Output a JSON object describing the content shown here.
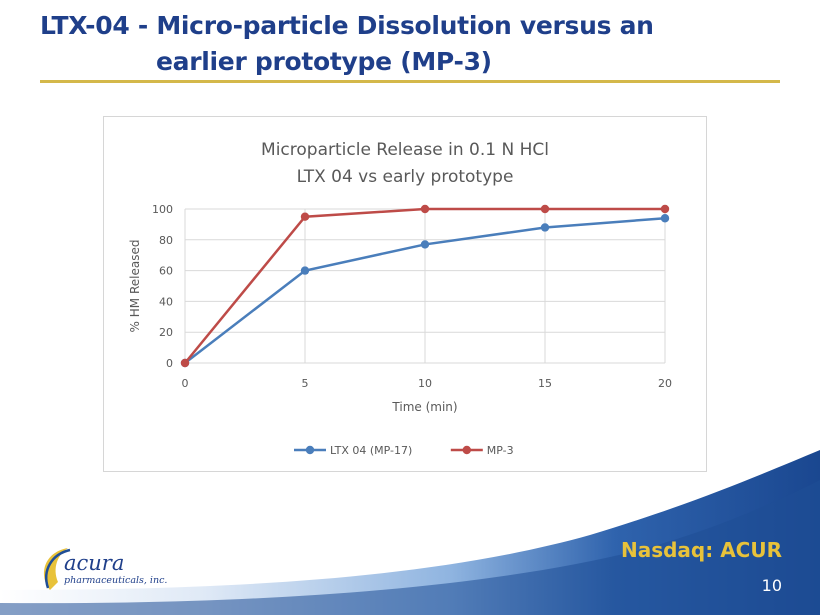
{
  "slide": {
    "title_line1": "LTX-04 - Micro-particle Dissolution versus an",
    "title_line2": "earlier prototype (MP-3)",
    "nasdaq": "Nasdaq: ACUR",
    "page_number": "10",
    "logo_name": "acura",
    "logo_sub": "pharmaceuticals, inc."
  },
  "colors": {
    "title": "#1f3f8a",
    "accent_rule": "#d4b84a",
    "footer_blue": "#1f4e96",
    "nasdaq": "#e8c23a"
  },
  "chart_data": {
    "type": "line",
    "title": "Microparticle Release in 0.1 N HCl",
    "subtitle": "LTX 04 vs early prototype",
    "xlabel": "Time (min)",
    "ylabel": "% HM Released",
    "x": [
      0,
      5,
      10,
      15,
      20
    ],
    "x_ticks": [
      "0",
      "5",
      "10",
      "15",
      "20"
    ],
    "y_ticks": [
      "0",
      "20",
      "40",
      "60",
      "80",
      "100"
    ],
    "xlim": [
      0,
      20
    ],
    "ylim": [
      0,
      100
    ],
    "grid": true,
    "legend_position": "bottom",
    "series": [
      {
        "name": "LTX 04 (MP-17)",
        "color": "#4a7ebb",
        "values": [
          0,
          60,
          77,
          88,
          94
        ]
      },
      {
        "name": "MP-3",
        "color": "#be4b48",
        "values": [
          0,
          95,
          100,
          100,
          100
        ]
      }
    ]
  }
}
